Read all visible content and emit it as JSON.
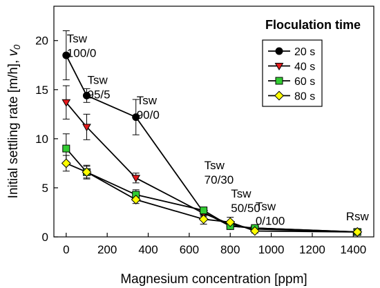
{
  "chart_data": {
    "type": "line",
    "xlabel": "Magnesium concentration [ppm]",
    "ylabel": "Initial settling rate [m/h], ",
    "ylabel_var": "v",
    "ylabel_sub": "0",
    "xlim": [
      -60,
      1500
    ],
    "ylim": [
      0,
      23.5
    ],
    "xticks": [
      0,
      200,
      400,
      600,
      800,
      1000,
      1200,
      1400
    ],
    "yticks": [
      0,
      5,
      10,
      15,
      20
    ],
    "grid": false,
    "legend": {
      "title": "Floculation time",
      "position": "top-right"
    },
    "series": [
      {
        "name": "20 s",
        "color": "#000000",
        "marker": "circle",
        "x": [
          0,
          100,
          340,
          670,
          800,
          920,
          1420
        ],
        "y": [
          18.5,
          14.4,
          12.2,
          2.5,
          1.1,
          0.9,
          0.5
        ],
        "err": [
          2.5,
          0.7,
          1.8,
          0.3,
          0.2,
          0.2,
          0.1
        ]
      },
      {
        "name": "40 s",
        "color": "#e41a1c",
        "marker": "triangle-down",
        "x": [
          0,
          100,
          340,
          670,
          800,
          920,
          1420
        ],
        "y": [
          13.7,
          11.2,
          6.0,
          2.4,
          1.3,
          0.8,
          0.5
        ],
        "err": [
          1.7,
          1.3,
          0.5,
          0.3,
          0.2,
          0.2,
          0.1
        ]
      },
      {
        "name": "60 s",
        "color": "#33cc33",
        "marker": "square",
        "x": [
          0,
          100,
          340,
          670,
          800,
          920,
          1420
        ],
        "y": [
          9.0,
          6.6,
          4.3,
          2.7,
          1.1,
          0.9,
          0.5
        ],
        "err": [
          1.5,
          0.6,
          0.5,
          0.3,
          0.2,
          0.2,
          0.1
        ]
      },
      {
        "name": "80 s",
        "color": "#ffff00",
        "marker": "diamond",
        "x": [
          0,
          100,
          340,
          670,
          800,
          920,
          1420
        ],
        "y": [
          7.5,
          6.6,
          3.8,
          1.8,
          1.5,
          0.6,
          0.5
        ],
        "err": [
          0.8,
          0.7,
          0.4,
          0.5,
          0.5,
          0.2,
          0.1
        ]
      }
    ],
    "annotations": [
      {
        "lines": [
          "Tsw",
          "100/0"
        ],
        "x": 0,
        "y": 19.8
      },
      {
        "lines": [
          "Tsw",
          "95/5"
        ],
        "x": 100,
        "y": 15.6
      },
      {
        "lines": [
          "Tsw",
          "90/0"
        ],
        "x": 340,
        "y": 13.5
      },
      {
        "lines": [
          "Tsw",
          "70/30"
        ],
        "x": 670,
        "y": 6.9
      },
      {
        "lines": [
          "Tsw",
          "50/50"
        ],
        "x": 800,
        "y": 4.0
      },
      {
        "lines": [
          "Tsw",
          "0/100"
        ],
        "x": 920,
        "y": 2.7
      },
      {
        "lines": [
          "Rsw"
        ],
        "x": 1420,
        "y": 1.7
      }
    ]
  }
}
